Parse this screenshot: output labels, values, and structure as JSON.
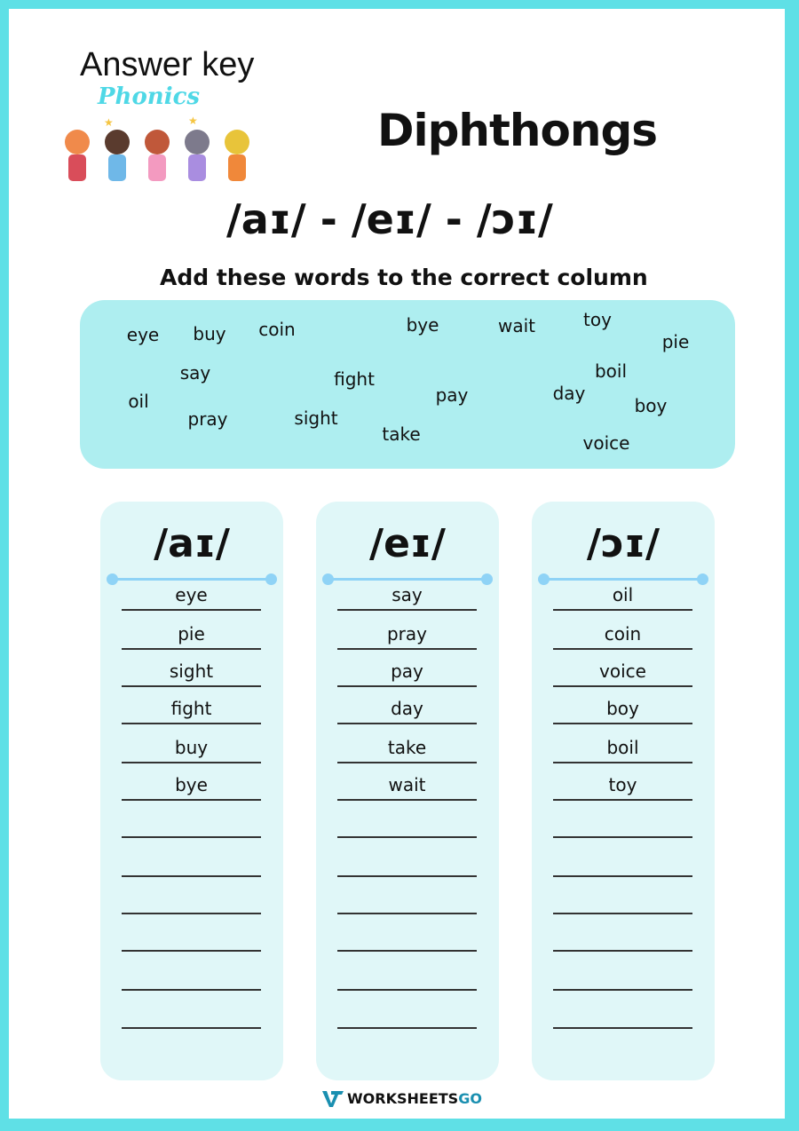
{
  "header": {
    "answer_key": "Answer key",
    "logo_text": "Phonics",
    "title": "Diphthongs",
    "sounds": "/aɪ/ - /eɪ/ - /ɔɪ/",
    "instruction": "Add these words to the correct column"
  },
  "word_bank": [
    "eye",
    "buy",
    "coin",
    "bye",
    "wait",
    "toy",
    "pie",
    "say",
    "fight",
    "boil",
    "oil",
    "pay",
    "day",
    "boy",
    "pray",
    "sight",
    "take",
    "voice"
  ],
  "columns": [
    {
      "heading": "/aɪ/",
      "answers": [
        "eye",
        "pie",
        "sight",
        "fight",
        "buy",
        "bye",
        "",
        "",
        "",
        "",
        "",
        ""
      ]
    },
    {
      "heading": "/eɪ/",
      "answers": [
        "say",
        "pray",
        "pay",
        "day",
        "take",
        "wait",
        "",
        "",
        "",
        "",
        "",
        ""
      ]
    },
    {
      "heading": "/ɔɪ/",
      "answers": [
        "oil",
        "coin",
        "voice",
        "boy",
        "boil",
        "toy",
        "",
        "",
        "",
        "",
        "",
        ""
      ]
    }
  ],
  "footer": {
    "brand_a": "WORKSHEETS",
    "brand_b": "GO",
    "brand_color": "#1a8fb0"
  }
}
